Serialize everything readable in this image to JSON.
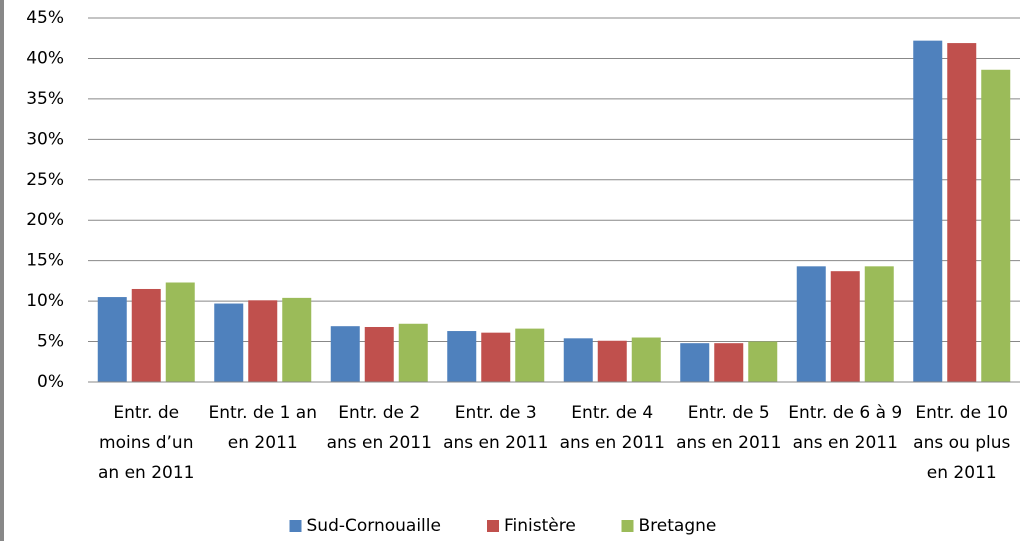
{
  "chart_data": {
    "type": "bar",
    "categories": [
      "Entr. de moins d’un an en 2011",
      "Entr. de 1 an en 2011",
      "Entr. de 2 ans en 2011",
      "Entr. de 3 ans en 2011",
      "Entr. de 4 ans en 2011",
      "Entr. de 5 ans en 2011",
      "Entr. de 6 à 9 ans en 2011",
      "Entr. de 10 ans ou plus en 2011"
    ],
    "series": [
      {
        "name": "Sud-Cornouaille",
        "color": "#4f81bd",
        "values": [
          10.5,
          9.7,
          6.9,
          6.3,
          5.4,
          4.8,
          14.3,
          42.2
        ]
      },
      {
        "name": "Finistère",
        "color": "#c0504d",
        "values": [
          11.5,
          10.1,
          6.8,
          6.1,
          5.1,
          4.8,
          13.7,
          41.9
        ]
      },
      {
        "name": "Bretagne",
        "color": "#9bbb59",
        "values": [
          12.3,
          10.4,
          7.2,
          6.6,
          5.5,
          5.0,
          14.3,
          38.6
        ]
      }
    ],
    "ylim": [
      0,
      45
    ],
    "yticks": [
      {
        "value": 0,
        "label": "0%"
      },
      {
        "value": 5,
        "label": "5%"
      },
      {
        "value": 10,
        "label": "10%"
      },
      {
        "value": 15,
        "label": "15%"
      },
      {
        "value": 20,
        "label": "20%"
      },
      {
        "value": 25,
        "label": "25%"
      },
      {
        "value": 30,
        "label": "30%"
      },
      {
        "value": 35,
        "label": "35%"
      },
      {
        "value": 40,
        "label": "40%"
      },
      {
        "value": 45,
        "label": "45%"
      }
    ],
    "grid": true,
    "legend": "bottom"
  }
}
